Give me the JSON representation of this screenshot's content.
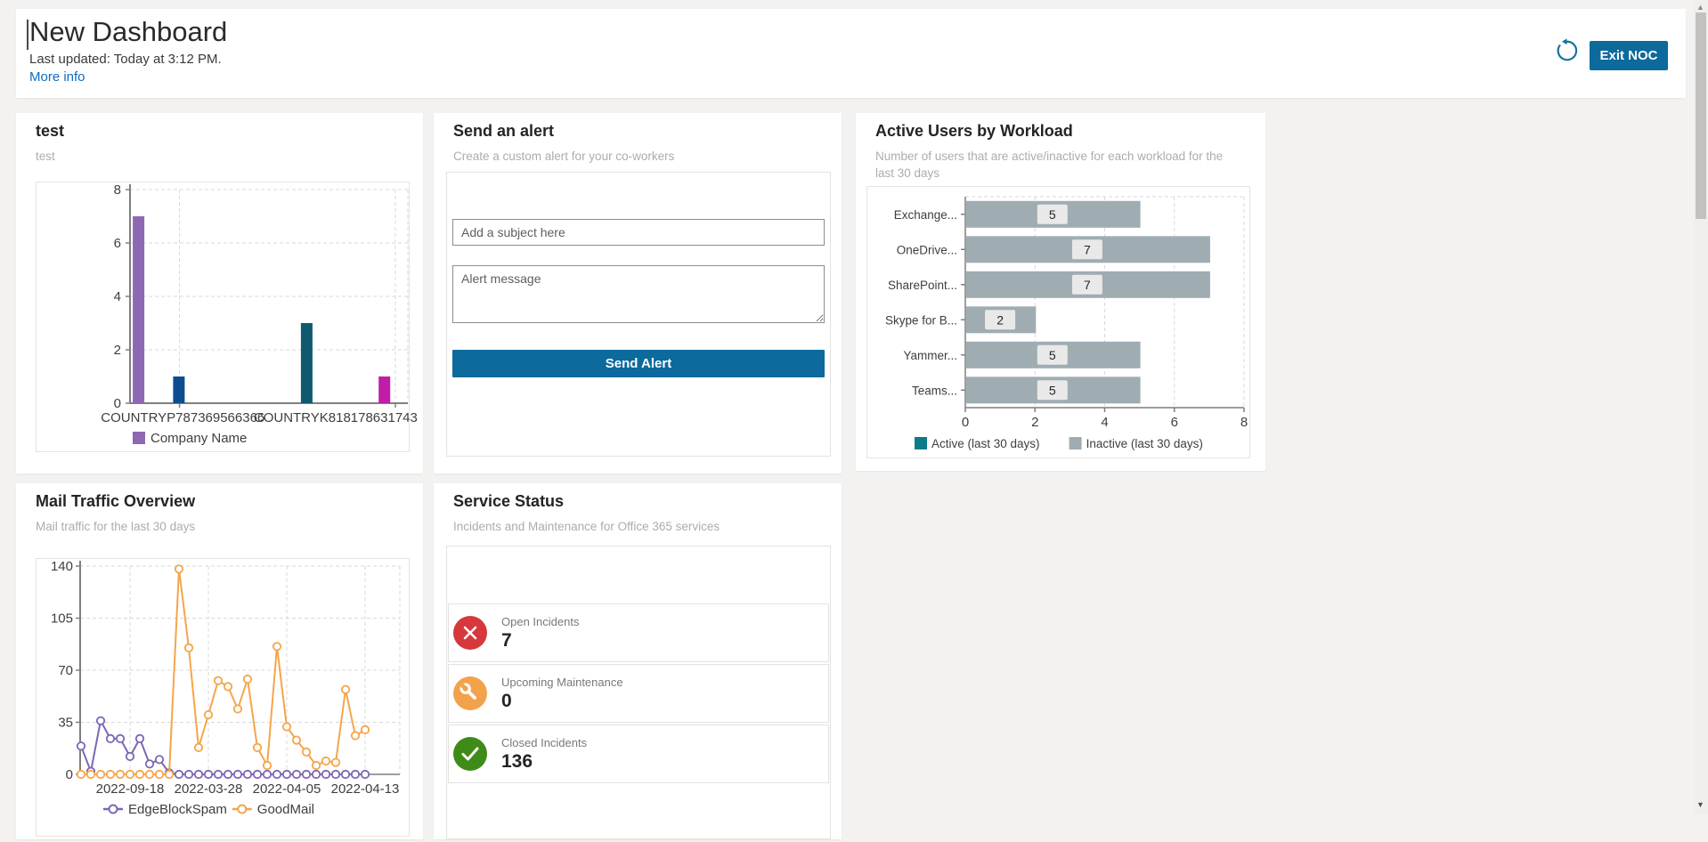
{
  "header": {
    "title": "New Dashboard",
    "last_updated": "Last updated: Today at 3:12 PM.",
    "more_info": "More info",
    "exit_button": "Exit NOC",
    "accent_color": "#0c6a9c",
    "refresh_icon_color": "#17719f"
  },
  "cards": {
    "test": {
      "title": "test",
      "subtitle": "test"
    },
    "alert": {
      "title": "Send an alert",
      "subtitle": "Create a custom alert for your co-workers",
      "subject_placeholder": "Add a subject here",
      "message_placeholder": "Alert message",
      "send_label": "Send Alert"
    },
    "active_users": {
      "title": "Active Users by Workload",
      "subtitle": "Number of users that are active/inactive for each workload for the last 30 days"
    },
    "mail": {
      "title": "Mail Traffic Overview",
      "subtitle": "Mail traffic for the last 30 days"
    },
    "service": {
      "title": "Service Status",
      "subtitle": "Incidents and Maintenance for Office 365 services",
      "rows": [
        {
          "icon": "open-incidents",
          "shape": "cross",
          "color": "#d6383c",
          "label": "Open Incidents",
          "value": "7"
        },
        {
          "icon": "upcoming-maintenance",
          "shape": "wrench",
          "color": "#f2a24b",
          "label": "Upcoming Maintenance",
          "value": "0"
        },
        {
          "icon": "closed-incidents",
          "shape": "check",
          "color": "#3f8b17",
          "label": "Closed Incidents",
          "value": "136"
        }
      ]
    }
  },
  "chart_data": [
    {
      "type": "bar",
      "title": "test",
      "ylim": [
        0,
        8
      ],
      "yticks": [
        0,
        2,
        4,
        6,
        8
      ],
      "bars": [
        {
          "category": "COUNTRYP787369566366",
          "series": "Company Name",
          "value": 7,
          "color": "#8e68b4",
          "xfrac": 0.01
        },
        {
          "category": "COUNTRYP787369566366",
          "series": "",
          "value": 1,
          "color": "#0d4d8f",
          "xfrac": 0.155
        },
        {
          "category": "COUNTRYK818178631743",
          "series": "",
          "value": 3,
          "color": "#0f5a6e",
          "xfrac": 0.615
        },
        {
          "category": "COUNTRYK818178631743",
          "series": "",
          "value": 1,
          "color": "#c01ea6",
          "xfrac": 0.895
        }
      ],
      "categories": [
        {
          "label": "COUNTRYP787369566366",
          "xfrac": 0.19
        },
        {
          "label": "COUNTRYK818178631743",
          "xfrac": 0.74
        }
      ],
      "gridx": [
        0.178,
        0.955
      ],
      "legend": [
        {
          "label": "Company Name",
          "color": "#8e68b4"
        }
      ],
      "axis_color": "#7f7f7f",
      "grid_color": "#d9d9d9",
      "text_color": "#3f3e3d"
    },
    {
      "type": "hbar",
      "title": "Active Users by Workload",
      "categories": [
        "Exchange...",
        "OneDrive...",
        "SharePoint...",
        "Skype for B...",
        "Yammer...",
        "Teams..."
      ],
      "values": [
        5,
        7,
        7,
        2,
        5,
        5
      ],
      "xlim": [
        0,
        8
      ],
      "xticks": [
        0,
        2,
        4,
        6,
        8
      ],
      "bar_color": "#9fadb3",
      "badge_bg": "#e9e9e9",
      "legend": [
        {
          "label": "Active (last 30 days)",
          "color": "#0b7c88"
        },
        {
          "label": "Inactive (last 30 days)",
          "color": "#9fadb3"
        }
      ],
      "axis_color": "#7f7f7f",
      "grid_color": "#d9d9d9",
      "text_color": "#3f3e3d"
    },
    {
      "type": "line",
      "title": "Mail Traffic Overview",
      "ylim": [
        0,
        140
      ],
      "yticks": [
        0,
        35,
        70,
        105,
        140
      ],
      "x_labels": [
        {
          "label": "2022-09-18",
          "index": 5
        },
        {
          "label": "2022-03-28",
          "index": 13
        },
        {
          "label": "2022-04-05",
          "index": 21
        },
        {
          "label": "2022-04-13",
          "index": 29
        }
      ],
      "series": [
        {
          "name": "EdgeBlockSpam",
          "color": "#7e66b5",
          "values": [
            19,
            2,
            36,
            24,
            24,
            12,
            24,
            7,
            10,
            1,
            0,
            0,
            0,
            0,
            0,
            0,
            0,
            0,
            0,
            0,
            0,
            0,
            0,
            0,
            0,
            0,
            0,
            0,
            0,
            0
          ]
        },
        {
          "name": "GoodMail",
          "color": "#f5a54a",
          "values": [
            0,
            0,
            0,
            0,
            0,
            0,
            0,
            0,
            0,
            0,
            138,
            85,
            18,
            40,
            63,
            59,
            44,
            64,
            18,
            6,
            86,
            32,
            23,
            15,
            6,
            9,
            8,
            57,
            26,
            30
          ]
        }
      ],
      "axis_color": "#7f7f7f",
      "grid_color": "#d9d9d9",
      "text_color": "#3f3e3d"
    }
  ]
}
